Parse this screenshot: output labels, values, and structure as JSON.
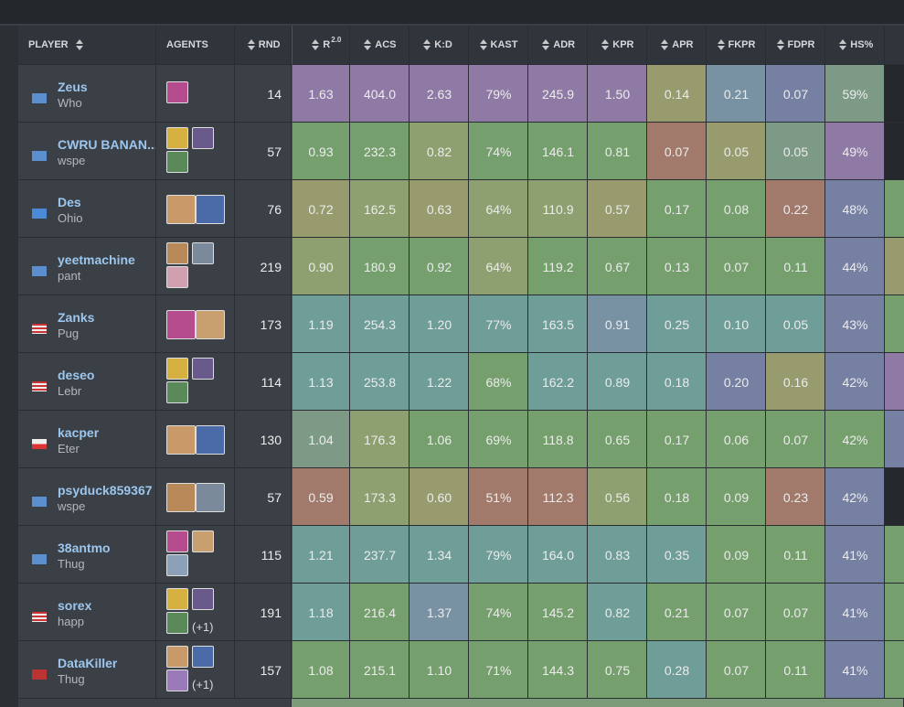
{
  "table": {
    "header": [
      {
        "label": "PLAYER"
      },
      {
        "label": "AGENTS"
      },
      {
        "label": "RND"
      },
      {
        "label": "R",
        "sup": "2.0"
      },
      {
        "label": "ACS"
      },
      {
        "label": "K:D"
      },
      {
        "label": "KAST"
      },
      {
        "label": "ADR"
      },
      {
        "label": "KPR"
      },
      {
        "label": "APR"
      },
      {
        "label": "FKPR"
      },
      {
        "label": "FDPR"
      },
      {
        "label": "HS%"
      }
    ],
    "rows": [
      {
        "player": "Zeus",
        "team": "Who",
        "rnd": "14",
        "stats": [
          "1.63",
          "404.0",
          "2.63",
          "79%",
          "245.9",
          "1.50",
          "0.14",
          "0.21",
          "0.07",
          "59%"
        ]
      },
      {
        "player": "CWRU BANAN...",
        "team": "wspe",
        "rnd": "57",
        "stats": [
          "0.93",
          "232.3",
          "0.82",
          "74%",
          "146.1",
          "0.81",
          "0.07",
          "0.05",
          "0.05",
          "49%"
        ]
      },
      {
        "player": "Des",
        "team": "Ohio",
        "rnd": "76",
        "stats": [
          "0.72",
          "162.5",
          "0.63",
          "64%",
          "110.9",
          "0.57",
          "0.17",
          "0.08",
          "0.22",
          "48%"
        ]
      },
      {
        "player": "yeetmachine",
        "team": "pant",
        "rnd": "219",
        "stats": [
          "0.90",
          "180.9",
          "0.92",
          "64%",
          "119.2",
          "0.67",
          "0.13",
          "0.07",
          "0.11",
          "44%"
        ]
      },
      {
        "player": "Zanks",
        "team": "Pug",
        "rnd": "173",
        "stats": [
          "1.19",
          "254.3",
          "1.20",
          "77%",
          "163.5",
          "0.91",
          "0.25",
          "0.10",
          "0.05",
          "43%"
        ]
      },
      {
        "player": "deseo",
        "team": "Lebr",
        "rnd": "114",
        "stats": [
          "1.13",
          "253.8",
          "1.22",
          "68%",
          "162.2",
          "0.89",
          "0.18",
          "0.20",
          "0.16",
          "42%"
        ]
      },
      {
        "player": "kacper",
        "team": "Eter",
        "rnd": "130",
        "stats": [
          "1.04",
          "176.3",
          "1.06",
          "69%",
          "118.8",
          "0.65",
          "0.17",
          "0.06",
          "0.07",
          "42%"
        ]
      },
      {
        "player": "psyduck859367",
        "team": "wspe",
        "rnd": "57",
        "stats": [
          "0.59",
          "173.3",
          "0.60",
          "51%",
          "112.3",
          "0.56",
          "0.18",
          "0.09",
          "0.23",
          "42%"
        ]
      },
      {
        "player": "38antmo",
        "team": "Thug",
        "rnd": "115",
        "stats": [
          "1.21",
          "237.7",
          "1.34",
          "79%",
          "164.0",
          "0.83",
          "0.35",
          "0.09",
          "0.11",
          "41%"
        ]
      },
      {
        "player": "sorex",
        "team": "happ",
        "rnd": "191",
        "extra": "(+1)",
        "stats": [
          "1.18",
          "216.4",
          "1.37",
          "74%",
          "145.2",
          "0.82",
          "0.21",
          "0.07",
          "0.07",
          "41%"
        ]
      },
      {
        "player": "DataKiller",
        "team": "Thug",
        "rnd": "157",
        "extra": "(+1)",
        "stats": [
          "1.08",
          "215.1",
          "1.10",
          "71%",
          "144.3",
          "0.75",
          "0.28",
          "0.07",
          "0.11",
          "41%"
        ]
      }
    ]
  }
}
